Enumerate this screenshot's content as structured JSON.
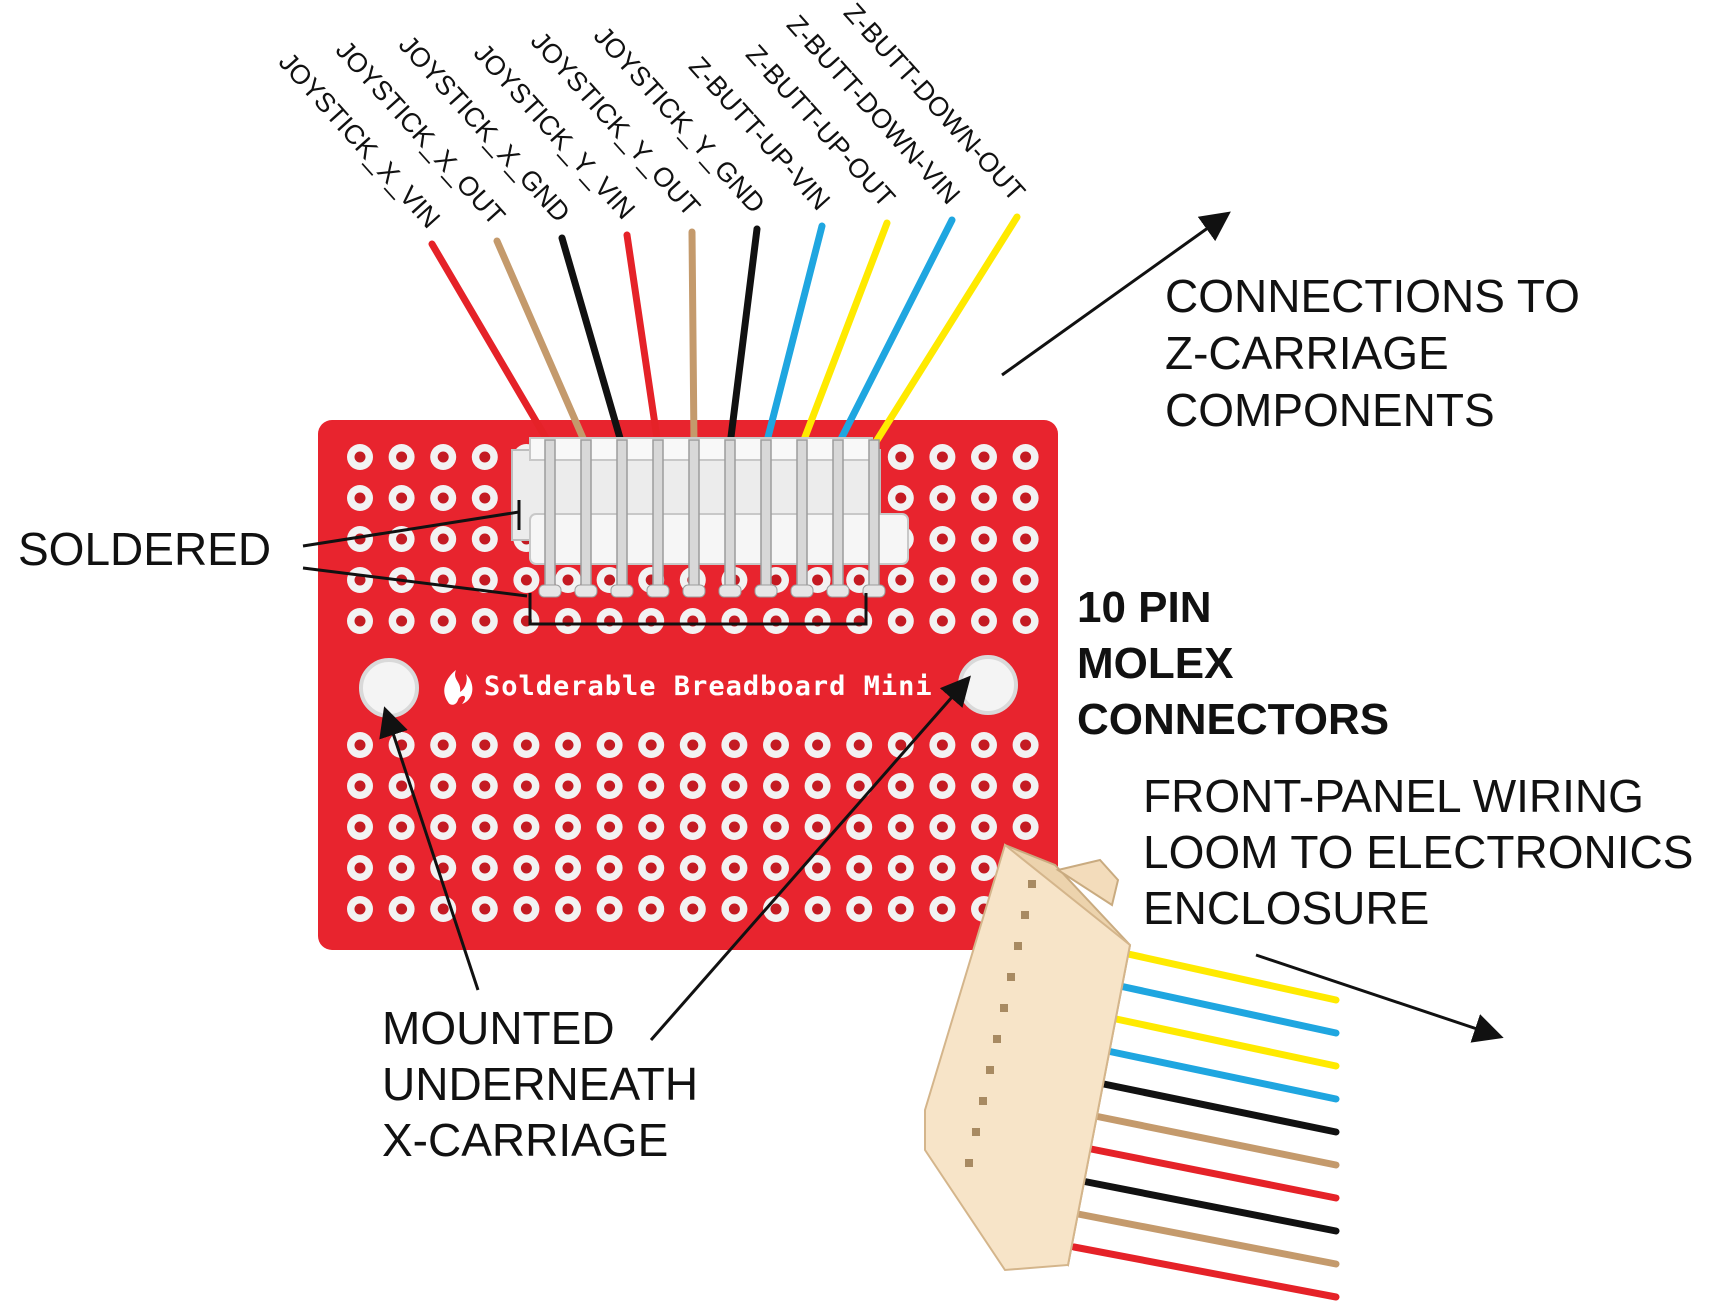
{
  "colors": {
    "board": "#e8242e",
    "board_dark": "#c41a22",
    "pad": "#f2f2f2",
    "header_plastic": "#f4f4f4",
    "connector_body": "#f7e4c8",
    "wire_red": "#e52228",
    "wire_tan": "#c49a6c",
    "wire_black": "#111111",
    "wire_blue": "#1fa6e0",
    "wire_yellow": "#ffea00"
  },
  "wire_labels": [
    {
      "text": "JOYSTICK_X_VIN",
      "color": "red"
    },
    {
      "text": "JOYSTICK_X_OUT",
      "color": "tan"
    },
    {
      "text": "JOYSTICK_X_GND",
      "color": "black"
    },
    {
      "text": "JOYSTICK_Y_VIN",
      "color": "red"
    },
    {
      "text": "JOYSTICK_Y_OUT",
      "color": "tan"
    },
    {
      "text": "JOYSTICK_Y_GND",
      "color": "black"
    },
    {
      "text": "Z-BUTT-UP-VIN",
      "color": "blue"
    },
    {
      "text": "Z-BUTT-UP-OUT",
      "color": "yellow"
    },
    {
      "text": "Z-BUTT-DOWN-VIN",
      "color": "blue"
    },
    {
      "text": "Z-BUTT-DOWN-OUT",
      "color": "yellow"
    }
  ],
  "loom_wire_colors": [
    "yellow",
    "blue",
    "yellow",
    "blue",
    "black",
    "tan",
    "red",
    "black",
    "tan",
    "red"
  ],
  "board": {
    "silkscreen": "Solderable Breadboard Mini",
    "logo": "flame-logo"
  },
  "callouts": {
    "connections": [
      "CONNECTIONS TO",
      "Z-CARRIAGE",
      "COMPONENTS"
    ],
    "soldered": "SOLDERED",
    "molex": [
      "10 PIN",
      "MOLEX",
      "CONNECTORS"
    ],
    "loom": [
      "FRONT-PANEL WIRING",
      "LOOM TO ELECTRONICS",
      "ENCLOSURE"
    ],
    "mounted": [
      "MOUNTED",
      "UNDERNEATH",
      "X-CARRIAGE"
    ]
  }
}
